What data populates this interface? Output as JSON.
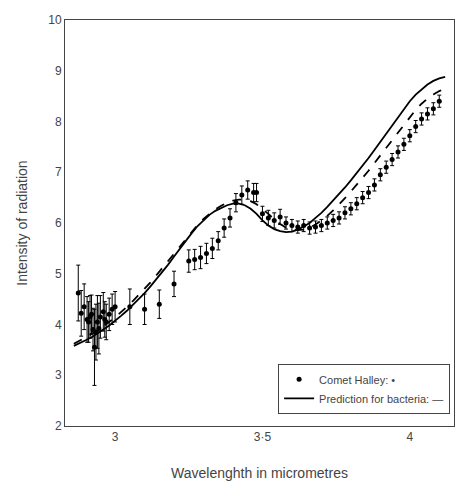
{
  "chart_data": {
    "type": "line",
    "xlabel": "Wavelenghth in micrometres",
    "ylabel": "Intensity of radiation",
    "xlim": [
      2.83,
      4.15
    ],
    "ylim": [
      2.0,
      10.0
    ],
    "xticks": [
      3,
      {
        "value": 3.5,
        "label": "3·5"
      },
      4
    ],
    "yticks": [
      2,
      3,
      4,
      5,
      6,
      7,
      8,
      9,
      10
    ],
    "grid": false,
    "legend": "lower right",
    "series": [
      {
        "type": "line",
        "name": "Prediction for bacteria: —",
        "color": "#000000",
        "line_style": "solid",
        "x": [
          2.86,
          2.88,
          2.9,
          2.92,
          2.94,
          2.96,
          2.98,
          3.0,
          3.02,
          3.04,
          3.06,
          3.08,
          3.1,
          3.12,
          3.14,
          3.16,
          3.18,
          3.2,
          3.22,
          3.24,
          3.26,
          3.28,
          3.3,
          3.32,
          3.34,
          3.36,
          3.38,
          3.4,
          3.42,
          3.44,
          3.46,
          3.48,
          3.5,
          3.52,
          3.54,
          3.56,
          3.58,
          3.6,
          3.62,
          3.64,
          3.66,
          3.68,
          3.7,
          3.72,
          3.74,
          3.76,
          3.78,
          3.8,
          3.82,
          3.84,
          3.86,
          3.88,
          3.9,
          3.92,
          3.94,
          3.96,
          3.98,
          4.0,
          4.02,
          4.04,
          4.06,
          4.08,
          4.1,
          4.12
        ],
        "values": [
          3.58,
          3.63,
          3.69,
          3.75,
          3.82,
          3.9,
          3.98,
          4.07,
          4.17,
          4.27,
          4.38,
          4.5,
          4.62,
          4.75,
          4.89,
          5.03,
          5.18,
          5.34,
          5.5,
          5.65,
          5.8,
          5.94,
          6.06,
          6.16,
          6.24,
          6.3,
          6.35,
          6.38,
          6.38,
          6.35,
          6.28,
          6.18,
          6.05,
          5.95,
          5.88,
          5.84,
          5.82,
          5.83,
          5.87,
          5.93,
          6.0,
          6.1,
          6.2,
          6.32,
          6.44,
          6.57,
          6.7,
          6.84,
          6.98,
          7.13,
          7.28,
          7.44,
          7.6,
          7.77,
          7.94,
          8.1,
          8.26,
          8.4,
          8.53,
          8.64,
          8.73,
          8.8,
          8.85,
          8.88
        ]
      },
      {
        "type": "line",
        "color": "#000000",
        "line_style": "dashed",
        "x": [
          2.86,
          2.88,
          2.9,
          2.92,
          2.94,
          2.96,
          2.98,
          3.0,
          3.02,
          3.04,
          3.06,
          3.08,
          3.1,
          3.12,
          3.14,
          3.16,
          3.18,
          3.2,
          3.22,
          3.24,
          3.26,
          3.28,
          3.3,
          3.32,
          3.34,
          3.36,
          3.38,
          3.4,
          3.42,
          3.44,
          3.46,
          3.48,
          3.5,
          3.52,
          3.54,
          3.56,
          3.58,
          3.6,
          3.62,
          3.64,
          3.66,
          3.68,
          3.7,
          3.72,
          3.74,
          3.76,
          3.78,
          3.8,
          3.82,
          3.84,
          3.86,
          3.88,
          3.9,
          3.92,
          3.94,
          3.96,
          3.98,
          4.0,
          4.02,
          4.04,
          4.06,
          4.08,
          4.1,
          4.12
        ],
        "values": [
          3.62,
          3.68,
          3.74,
          3.81,
          3.88,
          3.96,
          4.05,
          4.14,
          4.24,
          4.35,
          4.46,
          4.58,
          4.7,
          4.83,
          4.97,
          5.11,
          5.25,
          5.4,
          5.55,
          5.69,
          5.83,
          5.96,
          6.08,
          6.18,
          6.27,
          6.34,
          6.4,
          6.44,
          6.46,
          6.46,
          6.43,
          6.37,
          6.28,
          6.18,
          6.07,
          5.98,
          5.91,
          5.87,
          5.86,
          5.87,
          5.91,
          5.97,
          6.05,
          6.14,
          6.25,
          6.36,
          6.49,
          6.62,
          6.75,
          6.89,
          7.03,
          7.18,
          7.33,
          7.49,
          7.65,
          7.8,
          7.95,
          8.1,
          8.23,
          8.35,
          8.45,
          8.53,
          8.6,
          8.65
        ]
      },
      {
        "type": "scatter",
        "name": "Comet Halley: •",
        "color": "#000000",
        "marker": "circle",
        "x": [
          2.875,
          2.885,
          2.895,
          2.905,
          2.91,
          2.915,
          2.92,
          2.925,
          2.93,
          2.935,
          2.94,
          2.945,
          2.95,
          2.96,
          2.965,
          2.97,
          2.98,
          2.99,
          3.0,
          3.05,
          3.1,
          3.15,
          3.2,
          3.25,
          3.27,
          3.29,
          3.31,
          3.33,
          3.35,
          3.37,
          3.39,
          3.41,
          3.43,
          3.45,
          3.47,
          3.48,
          3.5,
          3.52,
          3.54,
          3.56,
          3.58,
          3.6,
          3.62,
          3.64,
          3.66,
          3.68,
          3.7,
          3.72,
          3.74,
          3.76,
          3.78,
          3.8,
          3.82,
          3.84,
          3.86,
          3.88,
          3.9,
          3.92,
          3.94,
          3.96,
          3.98,
          4.0,
          4.02,
          4.04,
          4.06,
          4.08,
          4.1
        ],
        "values": [
          4.62,
          4.22,
          4.35,
          4.1,
          4.05,
          4.15,
          4.2,
          3.9,
          3.55,
          3.85,
          4.05,
          3.92,
          4.15,
          4.25,
          4.1,
          4.05,
          4.2,
          4.3,
          4.35,
          4.35,
          4.3,
          4.4,
          4.8,
          5.25,
          5.28,
          5.32,
          5.4,
          5.5,
          5.65,
          5.9,
          6.1,
          6.4,
          6.55,
          6.65,
          6.6,
          6.6,
          6.18,
          6.1,
          6.05,
          6.12,
          6.0,
          5.95,
          5.92,
          5.95,
          5.9,
          5.92,
          5.95,
          6.0,
          6.05,
          6.1,
          6.2,
          6.28,
          6.38,
          6.5,
          6.6,
          6.75,
          6.95,
          7.1,
          7.25,
          7.4,
          7.55,
          7.72,
          7.9,
          8.05,
          8.15,
          8.25,
          8.4
        ],
        "yerr": [
          0.55,
          0.45,
          0.45,
          0.45,
          0.4,
          0.42,
          0.38,
          0.42,
          0.75,
          0.55,
          0.52,
          0.5,
          0.42,
          0.38,
          0.35,
          0.35,
          0.32,
          0.3,
          0.3,
          0.35,
          0.3,
          0.28,
          0.25,
          0.22,
          0.2,
          0.22,
          0.2,
          0.2,
          0.18,
          0.18,
          0.18,
          0.18,
          0.18,
          0.18,
          0.18,
          0.18,
          0.15,
          0.15,
          0.15,
          0.15,
          0.12,
          0.12,
          0.12,
          0.12,
          0.12,
          0.12,
          0.12,
          0.12,
          0.12,
          0.12,
          0.12,
          0.12,
          0.12,
          0.12,
          0.12,
          0.12,
          0.12,
          0.12,
          0.12,
          0.12,
          0.12,
          0.12,
          0.12,
          0.12,
          0.12,
          0.12,
          0.12
        ]
      }
    ]
  }
}
